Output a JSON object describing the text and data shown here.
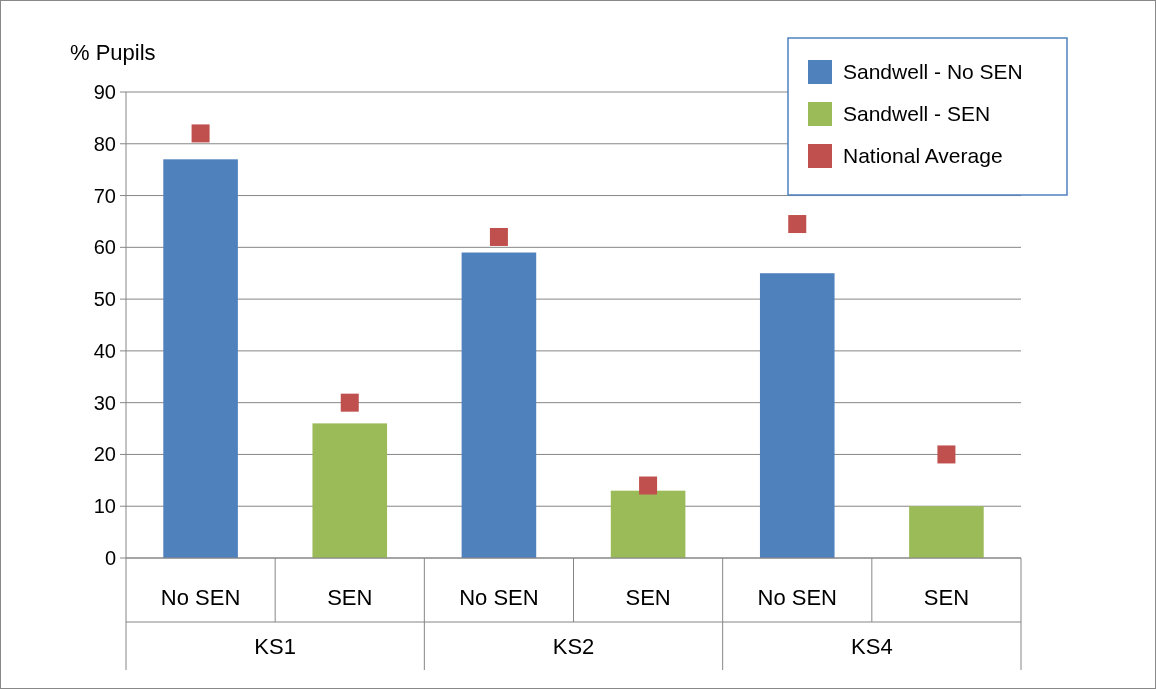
{
  "chart_data": {
    "type": "bar",
    "ylabel": "% Pupils",
    "categories": [
      "No SEN",
      "SEN",
      "No SEN",
      "SEN",
      "No SEN",
      "SEN"
    ],
    "annotations": [
      "KS1",
      "KS2",
      "KS4"
    ],
    "series": [
      {
        "name": "Sandwell - No SEN",
        "color": "#4f81bd",
        "values": [
          77,
          null,
          59,
          null,
          55,
          null
        ]
      },
      {
        "name": "Sandwell - SEN",
        "color": "#9bbb59",
        "values": [
          null,
          26,
          null,
          13,
          null,
          10
        ]
      },
      {
        "name": "National Average",
        "type": "scatter",
        "color": "#c0504d",
        "marker": "square",
        "values": [
          82,
          30,
          62,
          14,
          64.5,
          20
        ]
      }
    ],
    "ylim": [
      0,
      90
    ],
    "yticks": [
      0,
      10,
      20,
      30,
      40,
      50,
      60,
      70,
      80,
      90
    ],
    "grid": "y",
    "legend": "top right"
  }
}
